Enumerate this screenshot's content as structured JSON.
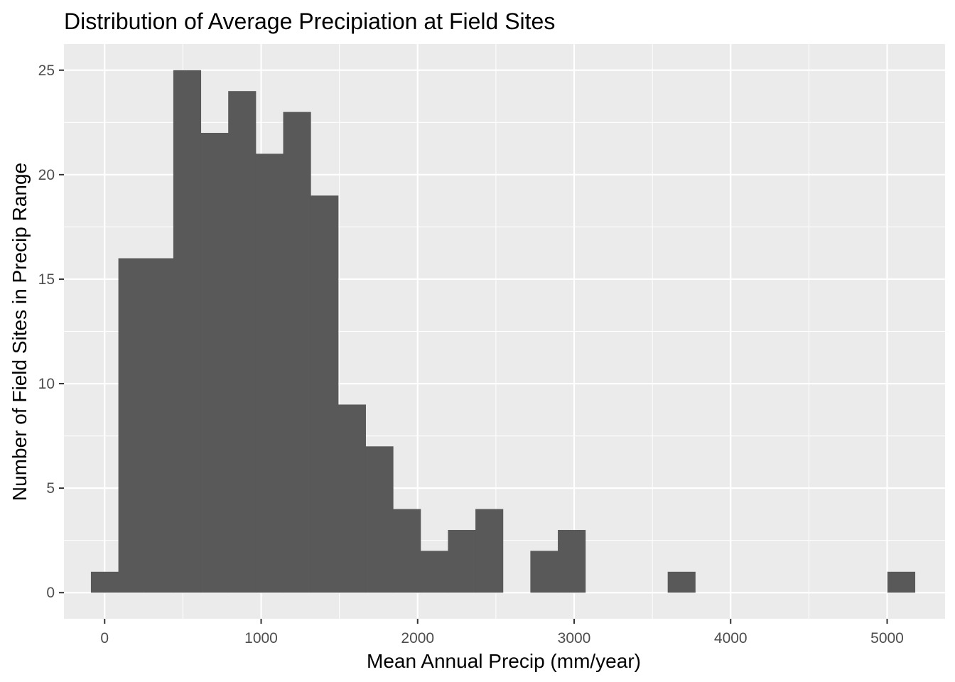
{
  "chart_data": {
    "type": "bar",
    "title": "Distribution of Average Precipiation at Field Sites",
    "xlabel": "Mean Annual Precip (mm/year)",
    "ylabel": "Number of Field Sites in Precip Range",
    "xlim": [
      -260,
      5370
    ],
    "ylim": [
      -1.25,
      26.25
    ],
    "x_ticks": [
      0,
      1000,
      2000,
      3000,
      4000,
      5000
    ],
    "y_ticks": [
      0,
      5,
      10,
      15,
      20,
      25
    ],
    "grid": true,
    "bin_width": 175.5,
    "bin_start": -87.75,
    "counts": [
      1,
      16,
      16,
      25,
      22,
      24,
      21,
      23,
      19,
      9,
      7,
      4,
      2,
      3,
      4,
      0,
      2,
      3,
      0,
      0,
      0,
      1,
      0,
      0,
      0,
      0,
      0,
      0,
      0,
      1
    ],
    "colors": {
      "panel": "#ebebeb",
      "grid_major": "#ffffff",
      "bar": "#595959"
    }
  }
}
